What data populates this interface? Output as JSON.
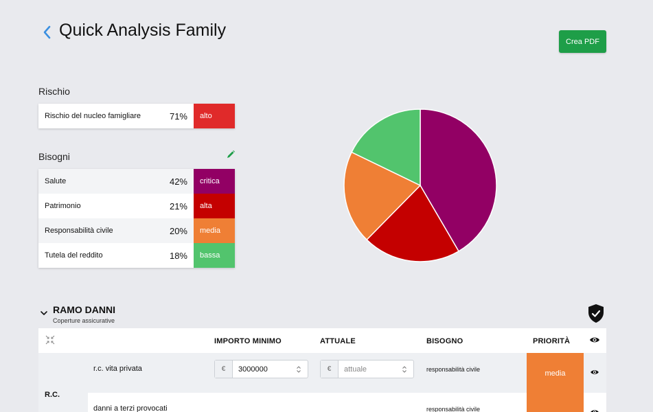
{
  "header": {
    "title": "Quick Analysis Family",
    "pdf_button": "Crea PDF"
  },
  "risk": {
    "title": "Rischio",
    "rows": [
      {
        "label": "Rischio del nucleo famigliare",
        "pct": "71%",
        "level": "alto",
        "color": "#e02a2a"
      }
    ]
  },
  "needs": {
    "title": "Bisogni",
    "rows": [
      {
        "label": "Salute",
        "pct": "42%",
        "level": "critica",
        "color": "#920064"
      },
      {
        "label": "Patrimonio",
        "pct": "21%",
        "level": "alta",
        "color": "#c40000"
      },
      {
        "label": "Responsabilità civile",
        "pct": "20%",
        "level": "media",
        "color": "#ef7f35"
      },
      {
        "label": "Tutela del reddito",
        "pct": "18%",
        "level": "bassa",
        "color": "#52c46d"
      }
    ]
  },
  "chart_data": {
    "type": "pie",
    "categories": [
      "Salute",
      "Patrimonio",
      "Responsabilità civile",
      "Tutela del reddito"
    ],
    "values": [
      42,
      21,
      20,
      18
    ],
    "colors": [
      "#920064",
      "#c40000",
      "#ef7f35",
      "#52c46d"
    ]
  },
  "ramo": {
    "title": "RAMO DANNI",
    "subtitle": "Coperture assicurative",
    "columns": {
      "min": "IMPORTO MINIMO",
      "current": "ATTUALE",
      "need": "BISOGNO",
      "priority": "PRIORITÀ"
    },
    "group_label": "R.C.",
    "rows": [
      {
        "name": "r.c. vita privata",
        "currency": "€",
        "min_value": "3000000",
        "current_placeholder": "attuale",
        "need": "responsabilità civile"
      },
      {
        "name": "danni a terzi provocati",
        "need": "responsabilità civile"
      }
    ],
    "priority": "media"
  }
}
